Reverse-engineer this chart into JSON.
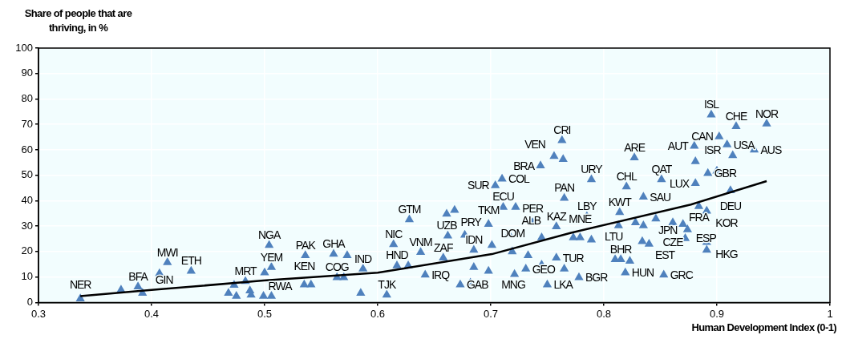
{
  "chart_data": {
    "type": "scatter",
    "xlabel": "Human Development Index (0-1)",
    "ylabel": "Share of people that are thriving, in %",
    "xlim": [
      0.3,
      1
    ],
    "xticks": [
      0.3,
      0.4,
      0.5,
      0.6,
      0.7,
      0.8,
      0.9,
      1
    ],
    "ylim": [
      0,
      100
    ],
    "yticks": [
      0,
      10,
      20,
      30,
      40,
      50,
      60,
      70,
      80,
      90,
      100
    ],
    "grid": true,
    "legend": false,
    "marker": "triangle",
    "series": [
      {
        "color": "#4f81bd",
        "x": [
          0.337,
          0.373,
          0.388,
          0.392,
          0.407,
          0.414,
          0.435,
          0.468,
          0.473,
          0.475,
          0.483,
          0.487,
          0.488,
          0.499,
          0.5,
          0.506,
          0.506,
          0.504,
          0.536,
          0.535,
          0.541,
          0.561,
          0.573,
          0.587,
          0.564,
          0.57,
          0.585,
          0.608,
          0.628,
          0.614,
          0.617,
          0.638,
          0.627,
          0.642,
          0.658,
          0.661,
          0.668,
          0.662,
          0.677,
          0.685,
          0.673,
          0.682,
          0.685,
          0.698,
          0.701,
          0.698,
          0.716,
          0.719,
          0.711,
          0.722,
          0.704,
          0.765,
          0.737,
          0.758,
          0.745,
          0.758,
          0.733,
          0.731,
          0.745,
          0.75,
          0.721,
          0.778,
          0.765,
          0.763,
          0.756,
          0.764,
          0.744,
          0.71,
          0.789,
          0.827,
          0.851,
          0.82,
          0.835,
          0.814,
          0.785,
          0.895,
          0.917,
          0.944,
          0.902,
          0.88,
          0.909,
          0.914,
          0.933,
          0.881,
          0.892,
          0.9,
          0.881,
          0.912,
          0.884,
          0.891,
          0.846,
          0.861,
          0.87,
          0.874,
          0.872,
          0.891,
          0.891,
          0.828,
          0.835,
          0.813,
          0.773,
          0.779,
          0.789,
          0.834,
          0.84,
          0.81,
          0.815,
          0.823,
          0.819,
          0.853
        ],
        "values": [
          1.5,
          4.9,
          6.2,
          3.7,
          11.4,
          15.7,
          12.3,
          3.7,
          6.8,
          2.5,
          8.3,
          4.6,
          3,
          2.5,
          11.7,
          13.8,
          2.5,
          22.5,
          18.5,
          7,
          7,
          19,
          18.5,
          13.2,
          9.8,
          9.8,
          3.7,
          3,
          32.6,
          22.8,
          14.5,
          19.7,
          14.5,
          10.8,
          17.5,
          34.8,
          36.3,
          26.2,
          26.5,
          20.6,
          7,
          7.7,
          13.8,
          12.3,
          22.5,
          30.8,
          26.8,
          20,
          37.5,
          37.5,
          46,
          41,
          31.4,
          29.8,
          25.5,
          17.5,
          18.5,
          13.2,
          14.8,
          7,
          11.1,
          9.8,
          13.2,
          63.7,
          57.5,
          56.3,
          53.8,
          48.6,
          48.3,
          56.9,
          48.3,
          45.5,
          41.5,
          35.4,
          33.8,
          73.8,
          69.2,
          70.2,
          65.2,
          61.5,
          62,
          57.8,
          60,
          55.4,
          50.8,
          51.7,
          46.8,
          44,
          37.8,
          36,
          32.9,
          31.4,
          30.8,
          28.6,
          25.2,
          23.7,
          20.6,
          31.4,
          30.2,
          30.2,
          25.5,
          25.5,
          24.6,
          24,
          23,
          16.9,
          16.9,
          16.3,
          11.7,
          10.8
        ]
      },
      {
        "type": "line",
        "color": "#000000",
        "marker": "none",
        "x": [
          0.337,
          0.4,
          0.499,
          0.6,
          0.701,
          0.771,
          0.877,
          0.944
        ],
        "values": [
          2.5,
          4.9,
          8.6,
          11.7,
          19,
          27.4,
          38.5,
          47.7
        ]
      }
    ],
    "annotations": [
      {
        "text": "NER",
        "x": 0.337,
        "y": 1.5
      },
      {
        "text": "BFA",
        "x": 0.388,
        "y": 6.2
      },
      {
        "text": "GIN",
        "x": 0.392,
        "y": 3.7
      },
      {
        "text": "MWI",
        "x": 0.414,
        "y": 15.7
      },
      {
        "text": "ETH",
        "x": 0.435,
        "y": 12.3
      },
      {
        "text": "MRT",
        "x": 0.483,
        "y": 8.3
      },
      {
        "text": "RWA",
        "x": 0.499,
        "y": 2.5
      },
      {
        "text": "YEM",
        "x": 0.506,
        "y": 13.8
      },
      {
        "text": "NGA",
        "x": 0.504,
        "y": 22.5
      },
      {
        "text": "PAK",
        "x": 0.536,
        "y": 18.5
      },
      {
        "text": "KEN",
        "x": 0.535,
        "y": 7
      },
      {
        "text": "GHA",
        "x": 0.561,
        "y": 19
      },
      {
        "text": "IND",
        "x": 0.587,
        "y": 13.2
      },
      {
        "text": "COG",
        "x": 0.564,
        "y": 9.8
      },
      {
        "text": "TJK",
        "x": 0.608,
        "y": 3
      },
      {
        "text": "GTM",
        "x": 0.628,
        "y": 32.6
      },
      {
        "text": "NIC",
        "x": 0.614,
        "y": 22.8
      },
      {
        "text": "HND",
        "x": 0.617,
        "y": 14.5
      },
      {
        "text": "VNM",
        "x": 0.638,
        "y": 19.7
      },
      {
        "text": "IRQ",
        "x": 0.642,
        "y": 10.8
      },
      {
        "text": "ZAF",
        "x": 0.658,
        "y": 17.5
      },
      {
        "text": "UZB",
        "x": 0.661,
        "y": 34.8
      },
      {
        "text": "PRY",
        "x": 0.662,
        "y": 26.2
      },
      {
        "text": "IDN",
        "x": 0.685,
        "y": 20.6
      },
      {
        "text": "GAB",
        "x": 0.673,
        "y": 7
      },
      {
        "text": "MNG",
        "x": 0.698,
        "y": 12.3
      },
      {
        "text": "DOM",
        "x": 0.701,
        "y": 22.5
      },
      {
        "text": "TKM",
        "x": 0.698,
        "y": 30.8
      },
      {
        "text": "ALB",
        "x": 0.716,
        "y": 26.8
      },
      {
        "text": "ECU",
        "x": 0.711,
        "y": 37.5
      },
      {
        "text": "SUR",
        "x": 0.704,
        "y": 46
      },
      {
        "text": "PAN",
        "x": 0.765,
        "y": 41
      },
      {
        "text": "PER",
        "x": 0.737,
        "y": 31.4
      },
      {
        "text": "KAZ",
        "x": 0.758,
        "y": 29.8
      },
      {
        "text": "TUR",
        "x": 0.758,
        "y": 17.5
      },
      {
        "text": "GEO",
        "x": 0.731,
        "y": 13.2
      },
      {
        "text": "LKA",
        "x": 0.75,
        "y": 7
      },
      {
        "text": "BGR",
        "x": 0.778,
        "y": 9.8
      },
      {
        "text": "CRI",
        "x": 0.763,
        "y": 63.7
      },
      {
        "text": "VEN",
        "x": 0.756,
        "y": 57.5
      },
      {
        "text": "BRA",
        "x": 0.744,
        "y": 53.8
      },
      {
        "text": "COL",
        "x": 0.71,
        "y": 48.6
      },
      {
        "text": "URY",
        "x": 0.789,
        "y": 48.3
      },
      {
        "text": "ARE",
        "x": 0.827,
        "y": 56.9
      },
      {
        "text": "QAT",
        "x": 0.851,
        "y": 48.3
      },
      {
        "text": "CHL",
        "x": 0.82,
        "y": 45.5
      },
      {
        "text": "SAU",
        "x": 0.835,
        "y": 41.5
      },
      {
        "text": "KWT",
        "x": 0.814,
        "y": 35.4
      },
      {
        "text": "LBY",
        "x": 0.785,
        "y": 33.8
      },
      {
        "text": "ISL",
        "x": 0.895,
        "y": 73.8
      },
      {
        "text": "CHE",
        "x": 0.917,
        "y": 69.2
      },
      {
        "text": "NOR",
        "x": 0.944,
        "y": 70.2
      },
      {
        "text": "CAN",
        "x": 0.902,
        "y": 65.2
      },
      {
        "text": "AUT",
        "x": 0.88,
        "y": 61.5
      },
      {
        "text": "USA",
        "x": 0.909,
        "y": 62
      },
      {
        "text": "AUS",
        "x": 0.933,
        "y": 60
      },
      {
        "text": "ISR",
        "x": 0.881,
        "y": 55.4
      },
      {
        "text": "GBR",
        "x": 0.892,
        "y": 50.8
      },
      {
        "text": "LUX",
        "x": 0.881,
        "y": 46.8
      },
      {
        "text": "DEU",
        "x": 0.912,
        "y": 44
      },
      {
        "text": "FRA",
        "x": 0.884,
        "y": 37.8
      },
      {
        "text": "KOR",
        "x": 0.891,
        "y": 36
      },
      {
        "text": "CZE",
        "x": 0.861,
        "y": 31.4
      },
      {
        "text": "ESP",
        "x": 0.87,
        "y": 30.8
      },
      {
        "text": "JPN",
        "x": 0.874,
        "y": 28.6
      },
      {
        "text": "HKG",
        "x": 0.891,
        "y": 23.7
      },
      {
        "text": "LTU",
        "x": 0.828,
        "y": 31.4
      },
      {
        "text": "MNE",
        "x": 0.779,
        "y": 25.5
      },
      {
        "text": "EST",
        "x": 0.834,
        "y": 24
      },
      {
        "text": "BHR",
        "x": 0.815,
        "y": 16.9
      },
      {
        "text": "HUN",
        "x": 0.819,
        "y": 11.7
      },
      {
        "text": "GRC",
        "x": 0.853,
        "y": 10.8
      }
    ]
  }
}
